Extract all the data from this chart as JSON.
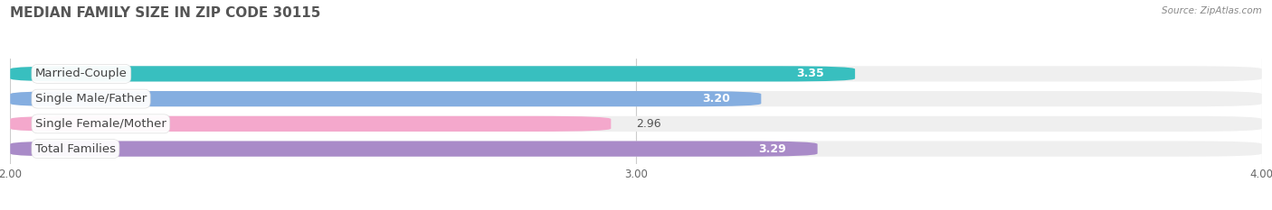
{
  "title": "MEDIAN FAMILY SIZE IN ZIP CODE 30115",
  "source": "Source: ZipAtlas.com",
  "categories": [
    "Married-Couple",
    "Single Male/Father",
    "Single Female/Mother",
    "Total Families"
  ],
  "values": [
    3.35,
    3.2,
    2.96,
    3.29
  ],
  "bar_colors": [
    "#38bfbf",
    "#85aee0",
    "#f4a8cc",
    "#a98bc8"
  ],
  "bar_bg_color": "#efefef",
  "xlim": [
    2.0,
    4.0
  ],
  "xticks": [
    2.0,
    3.0,
    4.0
  ],
  "xtick_labels": [
    "2.00",
    "3.00",
    "4.00"
  ],
  "title_fontsize": 11,
  "label_fontsize": 9.5,
  "value_fontsize": 9,
  "background_color": "#ffffff",
  "bar_height": 0.62,
  "rounding_size": 0.12
}
